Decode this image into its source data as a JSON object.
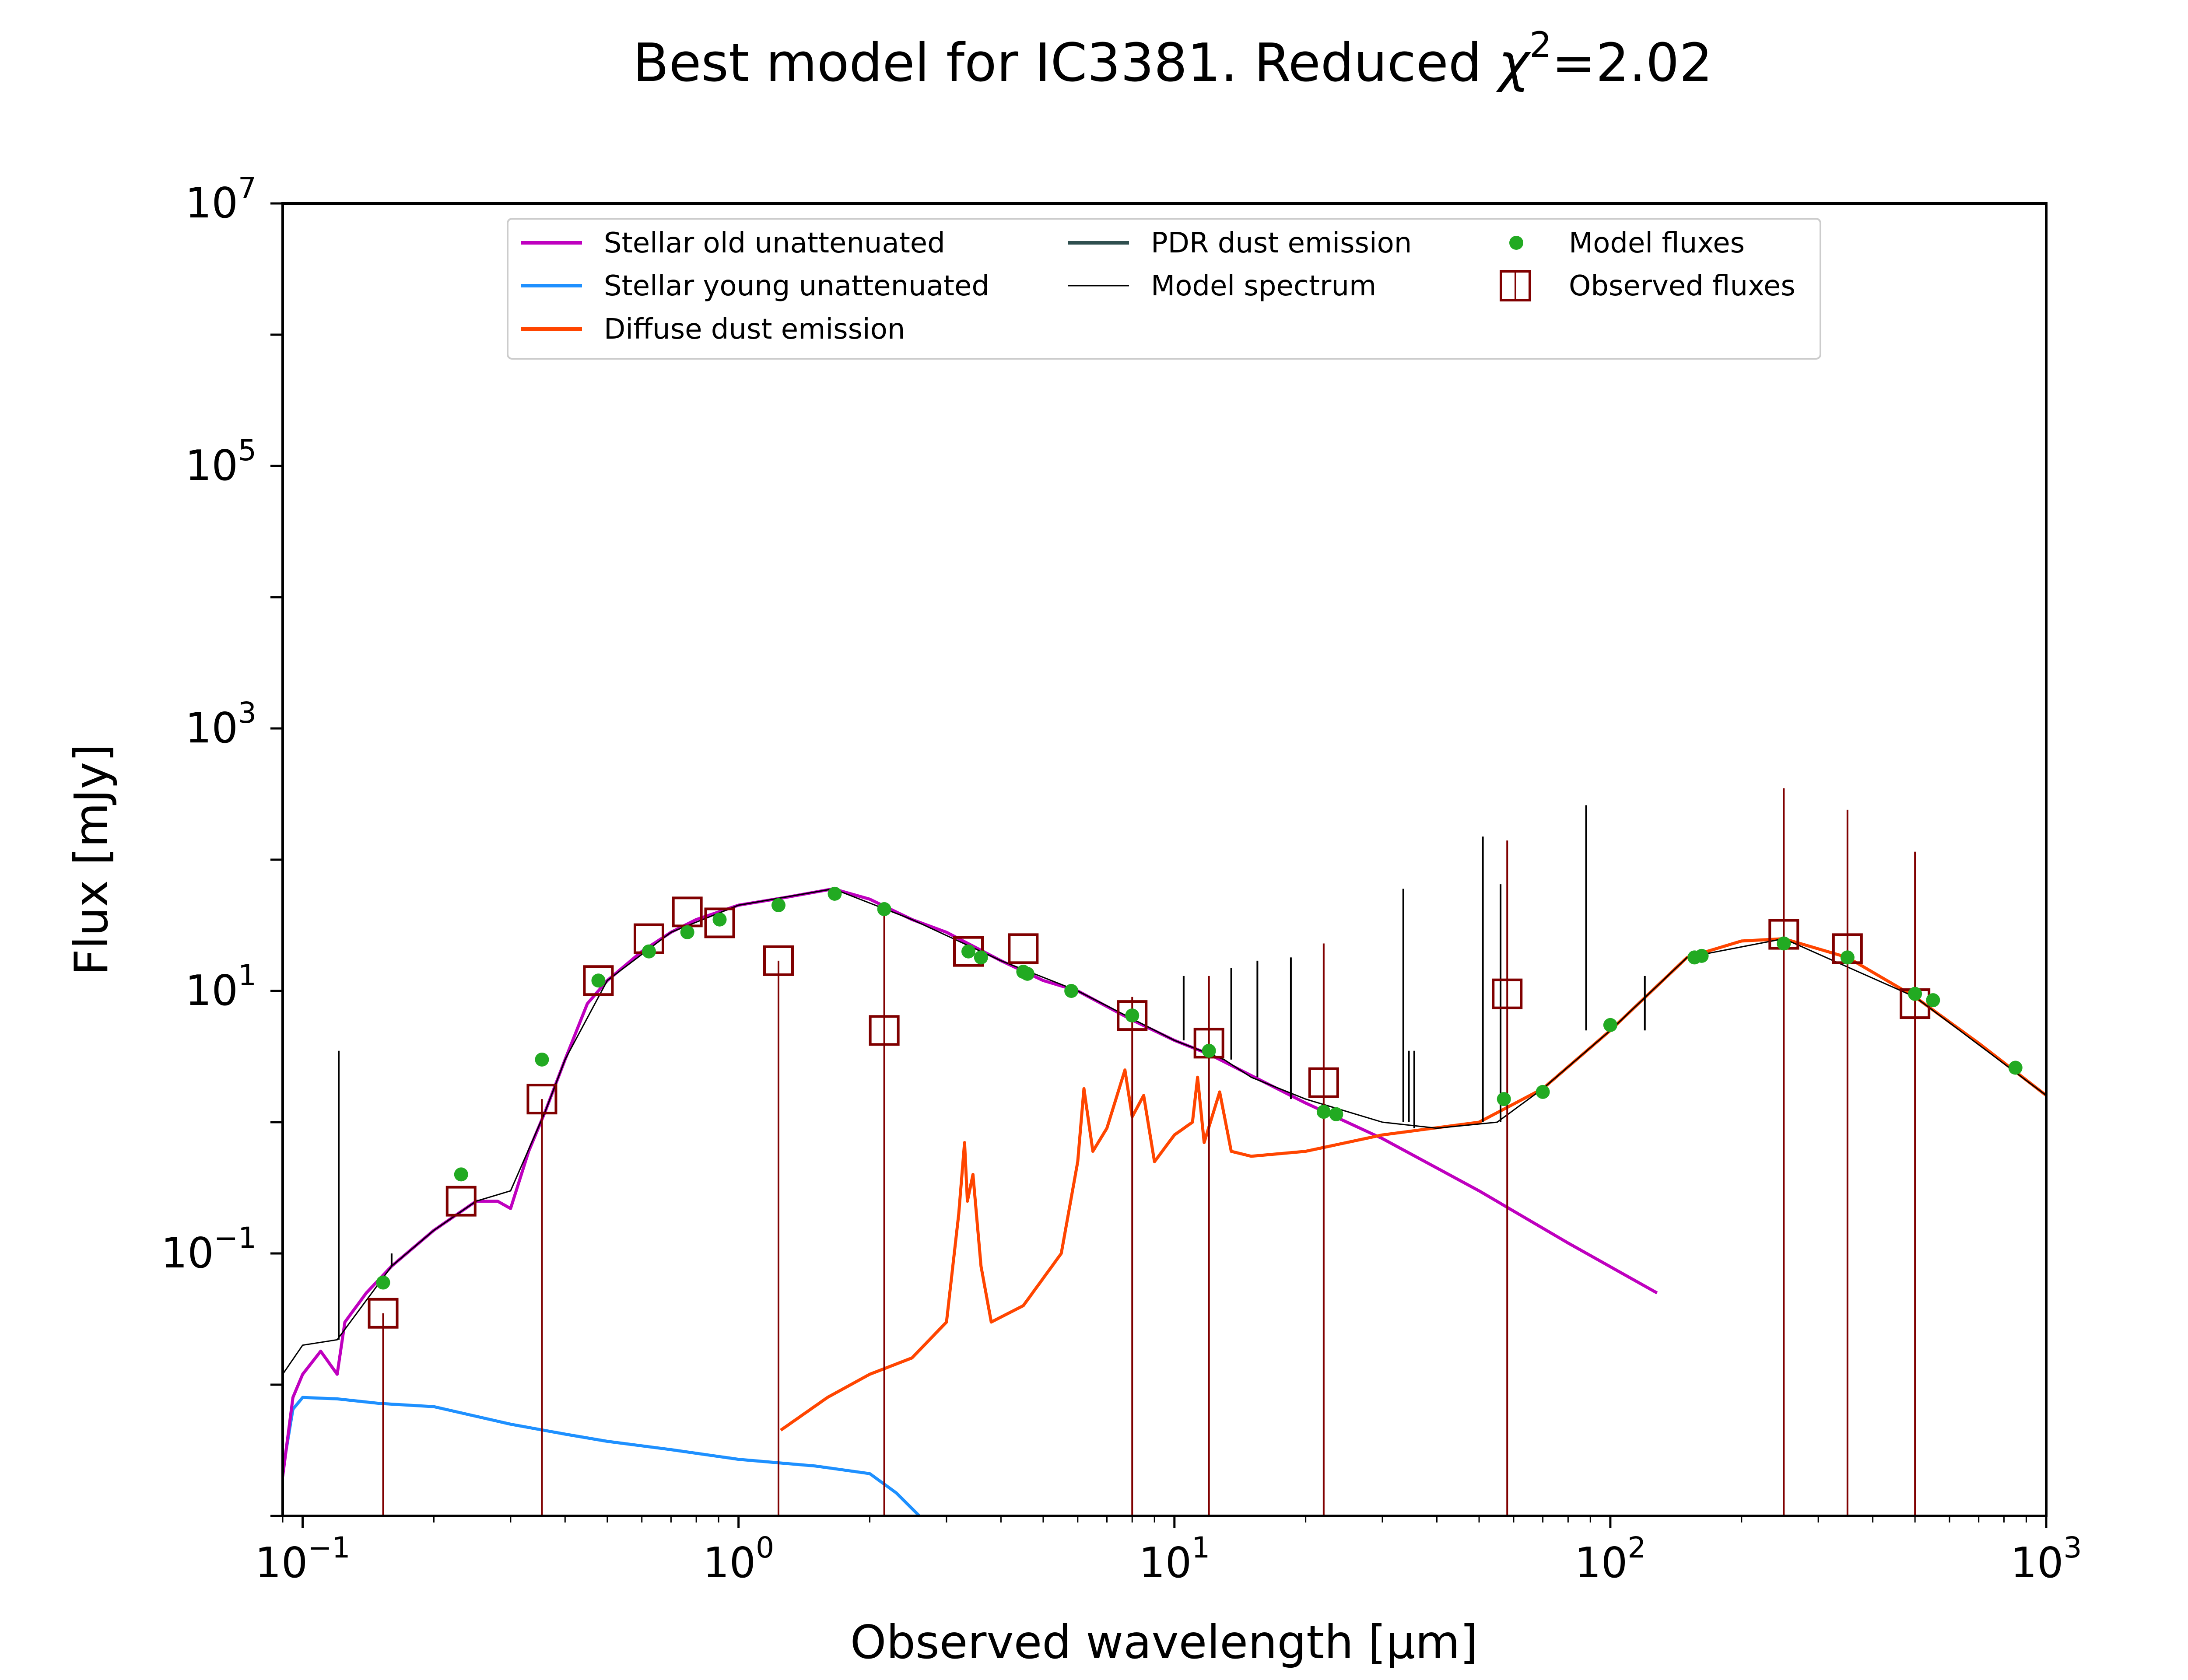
{
  "chart_data": {
    "type": "line",
    "title": "Best model for IC3381. Reduced χ²=2.02",
    "title_parts": {
      "prefix": "Best model for IC3381. Reduced ",
      "chi": "χ",
      "sup": "2",
      "suffix": "=2.02"
    },
    "xlabel": "Observed wavelength [μm]",
    "ylabel": "Flux [mJy]",
    "xscale": "log",
    "yscale": "log",
    "xlim": [
      0.09,
      1000
    ],
    "ylim": [
      0.001,
      10000000
    ],
    "x_ticks": [
      {
        "value": 0.1,
        "base": "10",
        "exp": "−1"
      },
      {
        "value": 1,
        "base": "10",
        "exp": "0"
      },
      {
        "value": 10,
        "base": "10",
        "exp": "1"
      },
      {
        "value": 100,
        "base": "10",
        "exp": "2"
      },
      {
        "value": 1000,
        "base": "10",
        "exp": "3"
      }
    ],
    "y_ticks": [
      {
        "value": 0.1,
        "base": "10",
        "exp": "−1"
      },
      {
        "value": 10,
        "base": "10",
        "exp": "1"
      },
      {
        "value": 1000,
        "base": "10",
        "exp": "3"
      },
      {
        "value": 100000,
        "base": "10",
        "exp": "5"
      },
      {
        "value": 10000000,
        "base": "10",
        "exp": "7"
      }
    ],
    "grid": false,
    "legend_position": "top",
    "series": [
      {
        "name": "Stellar old unattenuated",
        "kind": "line",
        "color": "#bf00bf",
        "points": [
          [
            0.09,
            0.002
          ],
          [
            0.095,
            0.008
          ],
          [
            0.1,
            0.012
          ],
          [
            0.11,
            0.018
          ],
          [
            0.12,
            0.012
          ],
          [
            0.125,
            0.03
          ],
          [
            0.14,
            0.05
          ],
          [
            0.16,
            0.08
          ],
          [
            0.2,
            0.15
          ],
          [
            0.25,
            0.25
          ],
          [
            0.28,
            0.25
          ],
          [
            0.3,
            0.22
          ],
          [
            0.33,
            0.6
          ],
          [
            0.36,
            1.2
          ],
          [
            0.4,
            3
          ],
          [
            0.45,
            8
          ],
          [
            0.5,
            12
          ],
          [
            0.6,
            20
          ],
          [
            0.7,
            28
          ],
          [
            0.8,
            35
          ],
          [
            1.0,
            45
          ],
          [
            1.3,
            52
          ],
          [
            1.65,
            60
          ],
          [
            2.0,
            50
          ],
          [
            2.5,
            35
          ],
          [
            3.0,
            28
          ],
          [
            4.0,
            17
          ],
          [
            5.0,
            12
          ],
          [
            6.0,
            10
          ],
          [
            8.0,
            6
          ],
          [
            10.0,
            4.2
          ],
          [
            12,
            3.3
          ],
          [
            20,
            1.4
          ],
          [
            30,
            0.75
          ],
          [
            50,
            0.3
          ],
          [
            80,
            0.12
          ],
          [
            128,
            0.05
          ]
        ]
      },
      {
        "name": "Stellar young unattenuated",
        "kind": "line",
        "color": "#1e90ff",
        "points": [
          [
            0.09,
            0.0022
          ],
          [
            0.095,
            0.0065
          ],
          [
            0.1,
            0.008
          ],
          [
            0.12,
            0.0078
          ],
          [
            0.15,
            0.0072
          ],
          [
            0.2,
            0.0068
          ],
          [
            0.3,
            0.005
          ],
          [
            0.4,
            0.0042
          ],
          [
            0.5,
            0.0037
          ],
          [
            0.7,
            0.0032
          ],
          [
            1.0,
            0.0027
          ],
          [
            1.5,
            0.0024
          ],
          [
            2.0,
            0.0021
          ],
          [
            2.3,
            0.0015
          ],
          [
            2.6,
            0.001
          ]
        ]
      },
      {
        "name": "Diffuse dust emission",
        "kind": "line",
        "color": "#ff4500",
        "points": [
          [
            1.25,
            0.0045
          ],
          [
            1.6,
            0.008
          ],
          [
            2.0,
            0.012
          ],
          [
            2.5,
            0.016
          ],
          [
            3.0,
            0.03
          ],
          [
            3.2,
            0.2
          ],
          [
            3.3,
            0.7
          ],
          [
            3.35,
            0.25
          ],
          [
            3.45,
            0.4
          ],
          [
            3.6,
            0.08
          ],
          [
            3.8,
            0.03
          ],
          [
            4.5,
            0.04
          ],
          [
            5.5,
            0.1
          ],
          [
            6.0,
            0.5
          ],
          [
            6.2,
            1.8
          ],
          [
            6.5,
            0.6
          ],
          [
            7.0,
            0.9
          ],
          [
            7.7,
            2.5
          ],
          [
            8.0,
            1.1
          ],
          [
            8.5,
            1.6
          ],
          [
            9.0,
            0.5
          ],
          [
            10.0,
            0.8
          ],
          [
            11.0,
            1.0
          ],
          [
            11.3,
            2.2
          ],
          [
            11.7,
            0.7
          ],
          [
            12.7,
            1.7
          ],
          [
            13.5,
            0.6
          ],
          [
            15,
            0.55
          ],
          [
            20,
            0.6
          ],
          [
            30,
            0.8
          ],
          [
            50,
            1.0
          ],
          [
            70,
            1.8
          ],
          [
            100,
            5.0
          ],
          [
            150,
            18
          ],
          [
            200,
            24
          ],
          [
            250,
            25
          ],
          [
            350,
            18
          ],
          [
            500,
            9
          ],
          [
            700,
            4
          ],
          [
            1000,
            1.6
          ]
        ]
      },
      {
        "name": "PDR dust emission",
        "kind": "line",
        "color": "#2f4f4f",
        "points": []
      },
      {
        "name": "Model spectrum",
        "kind": "line",
        "color": "#000000",
        "points": [
          [
            0.09,
            0.012
          ],
          [
            0.1,
            0.02
          ],
          [
            0.12,
            0.022
          ],
          [
            0.16,
            0.08
          ],
          [
            0.2,
            0.15
          ],
          [
            0.25,
            0.25
          ],
          [
            0.3,
            0.3
          ],
          [
            0.36,
            1.2
          ],
          [
            0.4,
            3
          ],
          [
            0.5,
            12
          ],
          [
            0.7,
            28
          ],
          [
            1.0,
            45
          ],
          [
            1.65,
            60
          ],
          [
            2.5,
            35
          ],
          [
            4.0,
            17
          ],
          [
            6.0,
            10
          ],
          [
            10,
            4.2
          ],
          [
            13,
            3.0
          ],
          [
            15,
            2.2
          ],
          [
            20,
            1.5
          ],
          [
            30,
            1.0
          ],
          [
            40,
            0.9
          ],
          [
            55,
            1.0
          ],
          [
            70,
            1.8
          ],
          [
            100,
            5
          ],
          [
            150,
            18
          ],
          [
            250,
            25
          ],
          [
            500,
            9
          ],
          [
            1000,
            1.6
          ]
        ],
        "lines": [
          [
            0.121,
            3.5
          ],
          [
            0.16,
            0.1
          ],
          [
            10.5,
            13
          ],
          [
            13.5,
            15
          ],
          [
            15.5,
            17
          ],
          [
            18.5,
            18
          ],
          [
            33.5,
            60
          ],
          [
            34.5,
            3.5
          ],
          [
            35.5,
            3.5
          ],
          [
            51,
            150
          ],
          [
            56,
            65
          ],
          [
            88,
            260
          ],
          [
            120,
            13
          ]
        ]
      },
      {
        "name": "Model fluxes",
        "kind": "scatter",
        "color": "#22aa22",
        "points": [
          [
            0.153,
            0.06
          ],
          [
            0.231,
            0.4
          ],
          [
            0.354,
            3
          ],
          [
            0.477,
            12
          ],
          [
            0.623,
            20
          ],
          [
            0.763,
            28
          ],
          [
            0.905,
            35
          ],
          [
            1.235,
            45
          ],
          [
            1.662,
            55
          ],
          [
            2.159,
            42
          ],
          [
            3.368,
            20
          ],
          [
            3.6,
            18
          ],
          [
            4.5,
            14
          ],
          [
            4.6,
            13.5
          ],
          [
            5.8,
            10
          ],
          [
            8.0,
            6.5
          ],
          [
            12,
            3.5
          ],
          [
            22,
            1.2
          ],
          [
            23.5,
            1.15
          ],
          [
            57,
            1.5
          ],
          [
            70,
            1.7
          ],
          [
            100,
            5.5
          ],
          [
            156,
            18
          ],
          [
            162,
            18.5
          ],
          [
            250,
            23
          ],
          [
            350,
            18
          ],
          [
            500,
            9.5
          ],
          [
            550,
            8.5
          ],
          [
            850,
            2.6
          ]
        ]
      },
      {
        "name": "Observed fluxes",
        "kind": "scatter",
        "color": "#800000",
        "points": [
          [
            0.153,
            0.035
          ],
          [
            0.231,
            0.25
          ],
          [
            0.354,
            1.5
          ],
          [
            0.477,
            12
          ],
          [
            0.623,
            25
          ],
          [
            0.763,
            40
          ],
          [
            0.905,
            33
          ],
          [
            1.235,
            17
          ],
          [
            2.159,
            5
          ],
          [
            3.368,
            20
          ],
          [
            4.5,
            21
          ],
          [
            8.0,
            6.5
          ],
          [
            12,
            4
          ],
          [
            22,
            2
          ],
          [
            58,
            9.5
          ],
          [
            250,
            27
          ],
          [
            350,
            21
          ],
          [
            500,
            8
          ]
        ],
        "error_lines": [
          [
            0.153,
            0.001,
            0.035
          ],
          [
            0.354,
            0.001,
            1.5
          ],
          [
            1.235,
            0.001,
            17
          ],
          [
            2.159,
            0.001,
            46
          ],
          [
            8.0,
            0.001,
            9
          ],
          [
            12,
            0.001,
            13
          ],
          [
            22,
            0.001,
            23
          ],
          [
            58,
            0.001,
            140
          ],
          [
            250,
            0.001,
            350
          ],
          [
            350,
            0.001,
            240
          ],
          [
            500,
            0.001,
            115
          ]
        ]
      }
    ]
  }
}
